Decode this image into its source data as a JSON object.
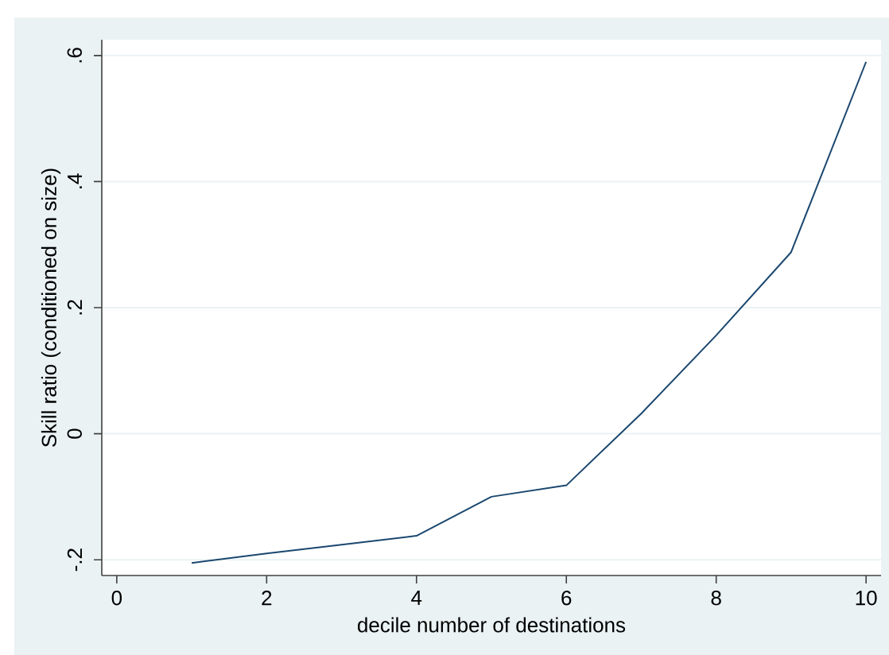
{
  "chart_data": {
    "type": "line",
    "xlabel": "decile number of destinations",
    "ylabel": "Skill ratio (conditioned on size)",
    "x": [
      1,
      2,
      3,
      4,
      5,
      6,
      7,
      8,
      9,
      10
    ],
    "values": [
      -0.205,
      -0.19,
      -0.176,
      -0.162,
      -0.1,
      -0.082,
      0.032,
      0.156,
      0.288,
      0.59
    ],
    "color": "#1a476f",
    "xlim": [
      -0.2,
      10.2
    ],
    "ylim": [
      -0.225,
      0.625
    ],
    "xticks": [
      0,
      2,
      4,
      6,
      8,
      10
    ],
    "yticks": [
      {
        "value": -0.2,
        "label": "-.2"
      },
      0,
      {
        "value": 0.2,
        "label": ".2"
      },
      {
        "value": 0.4,
        "label": ".4"
      },
      {
        "value": 0.6,
        "label": ".6"
      }
    ],
    "grid": "y",
    "line_style": "solid"
  }
}
